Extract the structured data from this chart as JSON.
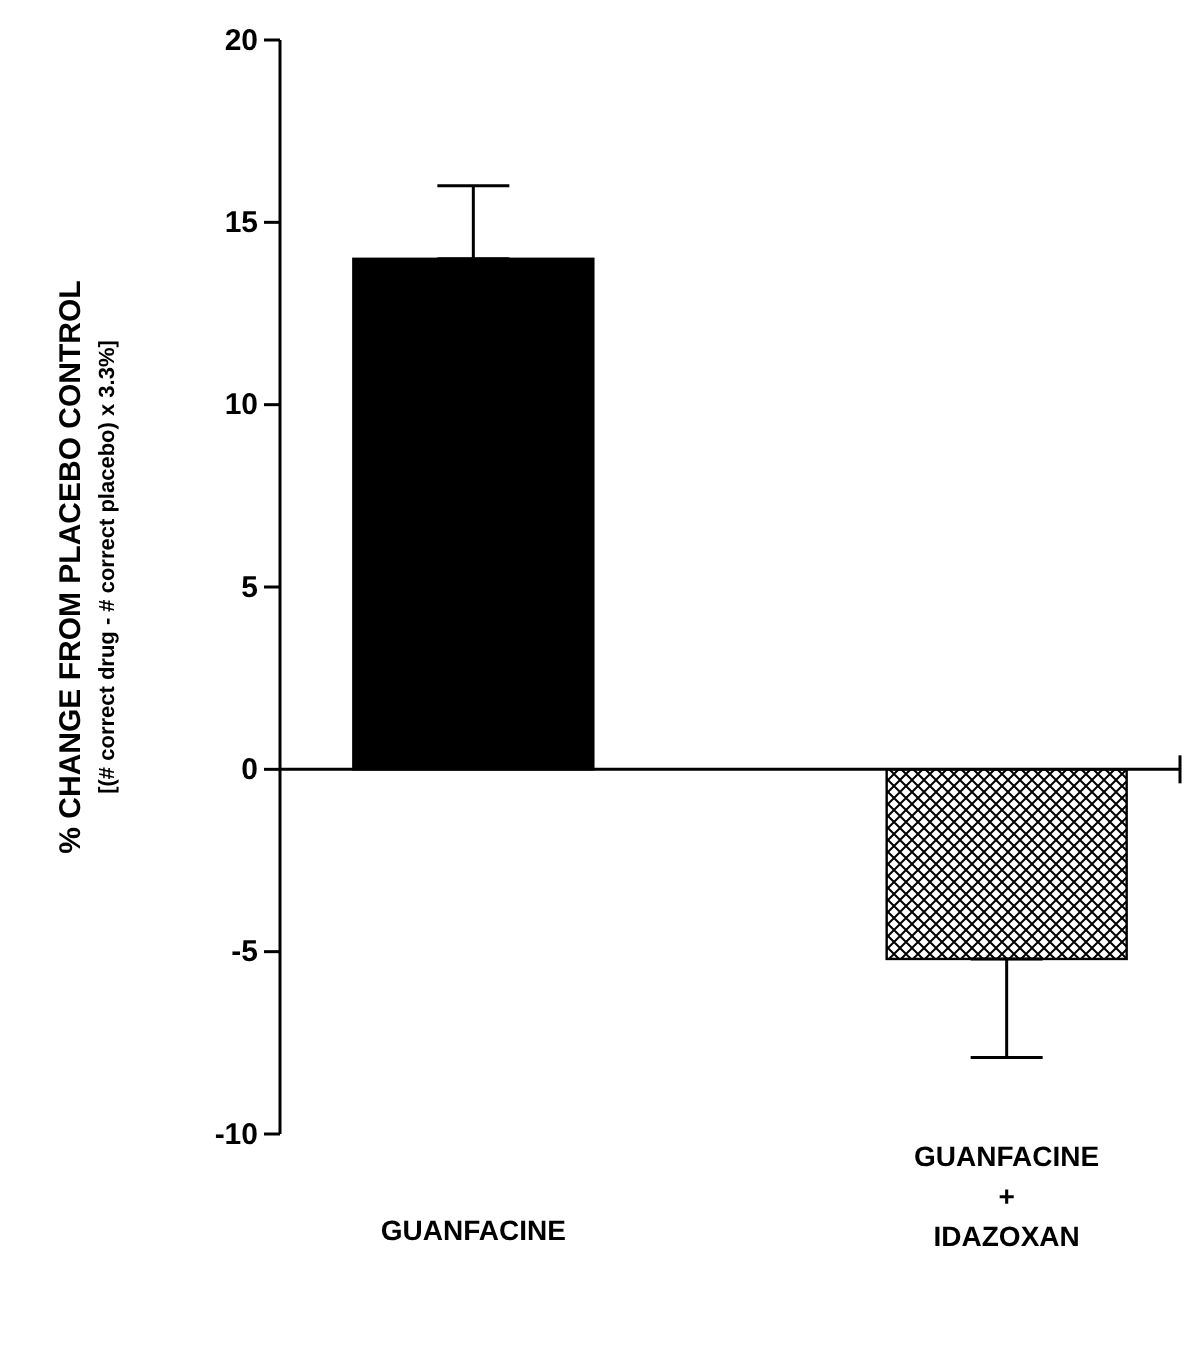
{
  "chart_data": {
    "type": "bar",
    "categories": [
      "GUANFACINE",
      "GUANFACINE + IDAZOXAN"
    ],
    "values": [
      14,
      -5.2
    ],
    "errors": [
      2,
      2.7
    ],
    "colors": [
      "#000000",
      "#000000"
    ],
    "ylabel": "% CHANGE FROM PLACEBO CONTROL\n[(# correct drug - # correct placebo) x 3.3%]",
    "ylim": [
      -10,
      20
    ],
    "yticks": [
      -10,
      -5,
      0,
      5,
      10,
      15,
      20
    ]
  }
}
